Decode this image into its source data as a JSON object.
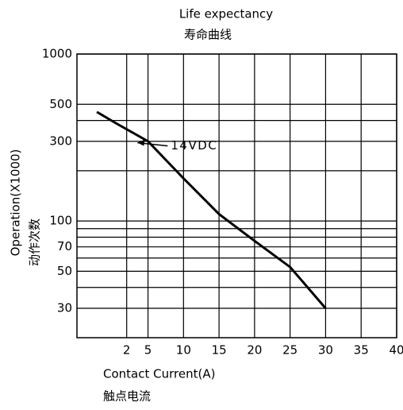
{
  "chart_data": {
    "type": "line",
    "title": "Life expectancy",
    "subtitle": "寿命曲线",
    "xlabel": "Contact Current(A)",
    "xlabel_cn": "触点电流",
    "ylabel": "Operation(X1000)",
    "ylabel_cn": "动作次数",
    "x": [
      -2.2,
      0.4,
      5,
      10,
      15,
      20,
      25,
      30
    ],
    "series": [
      {
        "name": "14VDC",
        "color": "#000000",
        "values": [
          450,
          387,
          300,
          180,
          110,
          76,
          53,
          30
        ]
      }
    ],
    "xlim": [
      -5,
      40
    ],
    "xticks": [
      2,
      5,
      10,
      15,
      20,
      25,
      30,
      35,
      40
    ],
    "ylim": [
      20,
      1000
    ],
    "yticks": [
      1000,
      500,
      300,
      100,
      70,
      50,
      30
    ],
    "yminor": [
      40,
      60,
      80,
      90,
      200,
      400
    ],
    "ylog": true,
    "grid": true
  }
}
